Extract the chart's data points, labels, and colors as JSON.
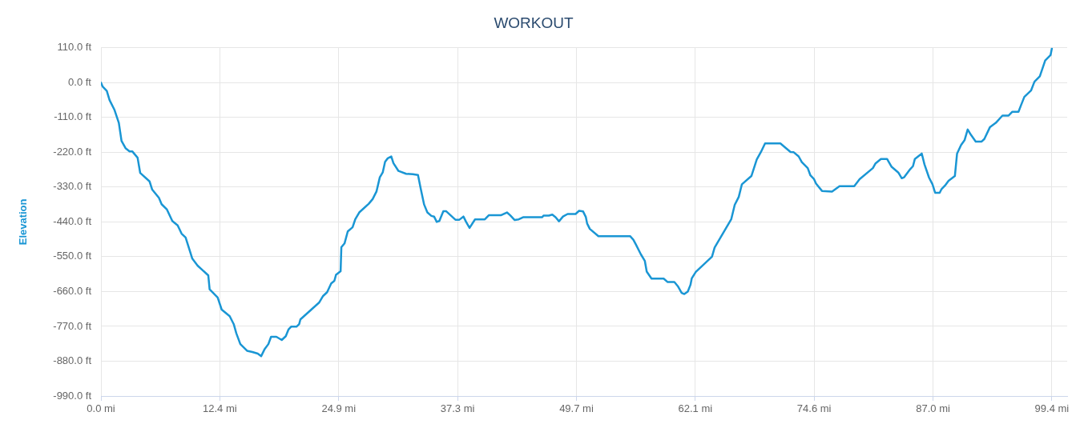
{
  "chart_data": {
    "type": "line",
    "title": "WORKOUT",
    "ylabel": "Elevation",
    "x": [
      0,
      0.19,
      0.61,
      0.9,
      1.4,
      1.87,
      2.15,
      2.57,
      2.99,
      3.27,
      3.83,
      4.1,
      5.08,
      5.36,
      6.06,
      6.34,
      6.9,
      7.46,
      8.02,
      8.43,
      8.85,
      9.55,
      10.1,
      11.22,
      11.36,
      12.2,
      12.62,
      13.46,
      13.88,
      14.15,
      14.57,
      15.27,
      15.83,
      16.39,
      16.75,
      17.09,
      17.5,
      17.78,
      18.34,
      18.9,
      19.32,
      19.6,
      19.88,
      20.44,
      20.72,
      20.85,
      22.8,
      23.22,
      23.64,
      24.07,
      24.4,
      24.57,
      25.05,
      25.13,
      25.46,
      25.8,
      26.3,
      26.58,
      27.0,
      27.98,
      28.4,
      28.8,
      29.15,
      29.46,
      29.7,
      29.98,
      30.35,
      30.57,
      31.1,
      31.9,
      32.6,
      33.14,
      33.42,
      33.78,
      34.12,
      34.54,
      34.82,
      35.1,
      35.37,
      35.79,
      36.07,
      37.05,
      37.47,
      37.89,
      38.17,
      38.53,
      39.1,
      40.13,
      40.54,
      41.8,
      42.44,
      42.78,
      43.25,
      43.67,
      44.17,
      46.13,
      46.26,
      46.82,
      47.18,
      47.52,
      47.88,
      48.3,
      48.78,
      49.61,
      49.98,
      50.4,
      50.68,
      50.82,
      51.1,
      52.0,
      55.31,
      55.65,
      55.93,
      56.43,
      56.85,
      57.05,
      57.55,
      58.82,
      59.24,
      59.94,
      60.3,
      60.7,
      60.98,
      61.34,
      61.62,
      61.76,
      62.18,
      63.87,
      64.15,
      65.88,
      66.25,
      66.67,
      67.0,
      67.99,
      68.55,
      68.99,
      69.42,
      71.02,
      72.08,
      72.42,
      72.93,
      73.26,
      73.88,
      74.16,
      74.52,
      74.75,
      75.37,
      76.42,
      77.2,
      78.74,
      79.3,
      80.69,
      80.97,
      81.53,
      82.17,
      82.65,
      83.35,
      83.71,
      83.96,
      84.6,
      84.88,
      85.08,
      85.8,
      86.08,
      86.56,
      86.92,
      87.2,
      87.67,
      87.87,
      88.23,
      88.6,
      89.26,
      89.49,
      89.91,
      90.27,
      90.6,
      90.94,
      91.44,
      92.06,
      92.34,
      92.92,
      93.54,
      94.23,
      94.88,
      95.27,
      95.91,
      96.18,
      96.52,
      97.22,
      97.58,
      98.14,
      98.7,
      99.26,
      99.4
    ],
    "series": [
      {
        "color": "#1a96d4",
        "values": [
          0,
          -13,
          -26,
          -55,
          -85,
          -127,
          -184,
          -207,
          -217,
          -217,
          -237,
          -285,
          -312,
          -338,
          -364,
          -384,
          -401,
          -437,
          -451,
          -477,
          -489,
          -556,
          -578,
          -609,
          -653,
          -679,
          -717,
          -738,
          -763,
          -792,
          -826,
          -847,
          -851,
          -856,
          -864,
          -843,
          -826,
          -803,
          -803,
          -813,
          -801,
          -780,
          -771,
          -771,
          -763,
          -748,
          -695,
          -674,
          -662,
          -634,
          -626,
          -607,
          -596,
          -520,
          -508,
          -470,
          -457,
          -432,
          -410,
          -383,
          -368,
          -344,
          -299,
          -283,
          -250,
          -239,
          -233,
          -254,
          -279,
          -288,
          -289,
          -292,
          -334,
          -385,
          -410,
          -421,
          -423,
          -440,
          -437,
          -406,
          -406,
          -433,
          -433,
          -423,
          -440,
          -459,
          -432,
          -432,
          -419,
          -419,
          -410,
          -419,
          -434,
          -432,
          -425,
          -425,
          -420,
          -420,
          -417,
          -425,
          -438,
          -423,
          -415,
          -415,
          -405,
          -407,
          -424,
          -445,
          -462,
          -485,
          -485,
          -496,
          -512,
          -542,
          -563,
          -597,
          -619,
          -619,
          -630,
          -630,
          -643,
          -664,
          -668,
          -660,
          -639,
          -618,
          -598,
          -550,
          -521,
          -432,
          -386,
          -361,
          -321,
          -295,
          -243,
          -219,
          -192,
          -192,
          -219,
          -220,
          -233,
          -251,
          -270,
          -293,
          -304,
          -319,
          -342,
          -344,
          -327,
          -327,
          -305,
          -270,
          -255,
          -241,
          -241,
          -266,
          -284,
          -302,
          -299,
          -273,
          -264,
          -241,
          -224,
          -258,
          -300,
          -321,
          -348,
          -348,
          -336,
          -325,
          -310,
          -295,
          -224,
          -197,
          -182,
          -148,
          -165,
          -186,
          -186,
          -178,
          -141,
          -127,
          -104,
          -104,
          -92,
          -92,
          -71,
          -45,
          -25,
          3,
          20,
          70,
          87,
          108
        ]
      }
    ],
    "xlim": [
      0,
      101
    ],
    "xticks": [
      {
        "value": 0,
        "label": "0.0 mi"
      },
      {
        "value": 12.425,
        "label": "12.4 mi"
      },
      {
        "value": 24.85,
        "label": "24.9 mi"
      },
      {
        "value": 37.275,
        "label": "37.3 mi"
      },
      {
        "value": 49.7,
        "label": "49.7 mi"
      },
      {
        "value": 62.125,
        "label": "62.1 mi"
      },
      {
        "value": 74.55,
        "label": "74.6 mi"
      },
      {
        "value": 86.975,
        "label": "87.0 mi"
      },
      {
        "value": 99.4,
        "label": "99.4 mi"
      }
    ],
    "ylim": [
      -990,
      110
    ],
    "yticks": [
      {
        "value": 110,
        "label": "110.0 ft"
      },
      {
        "value": 0,
        "label": "0.0 ft"
      },
      {
        "value": -110,
        "label": "-110.0 ft"
      },
      {
        "value": -220,
        "label": "-220.0 ft"
      },
      {
        "value": -330,
        "label": "-330.0 ft"
      },
      {
        "value": -440,
        "label": "-440.0 ft"
      },
      {
        "value": -550,
        "label": "-550.0 ft"
      },
      {
        "value": -660,
        "label": "-660.0 ft"
      },
      {
        "value": -770,
        "label": "-770.0 ft"
      },
      {
        "value": -880,
        "label": "-880.0 ft"
      },
      {
        "value": -990,
        "label": "-990.0 ft"
      }
    ],
    "grid": true,
    "legend": false,
    "marker": "none"
  }
}
